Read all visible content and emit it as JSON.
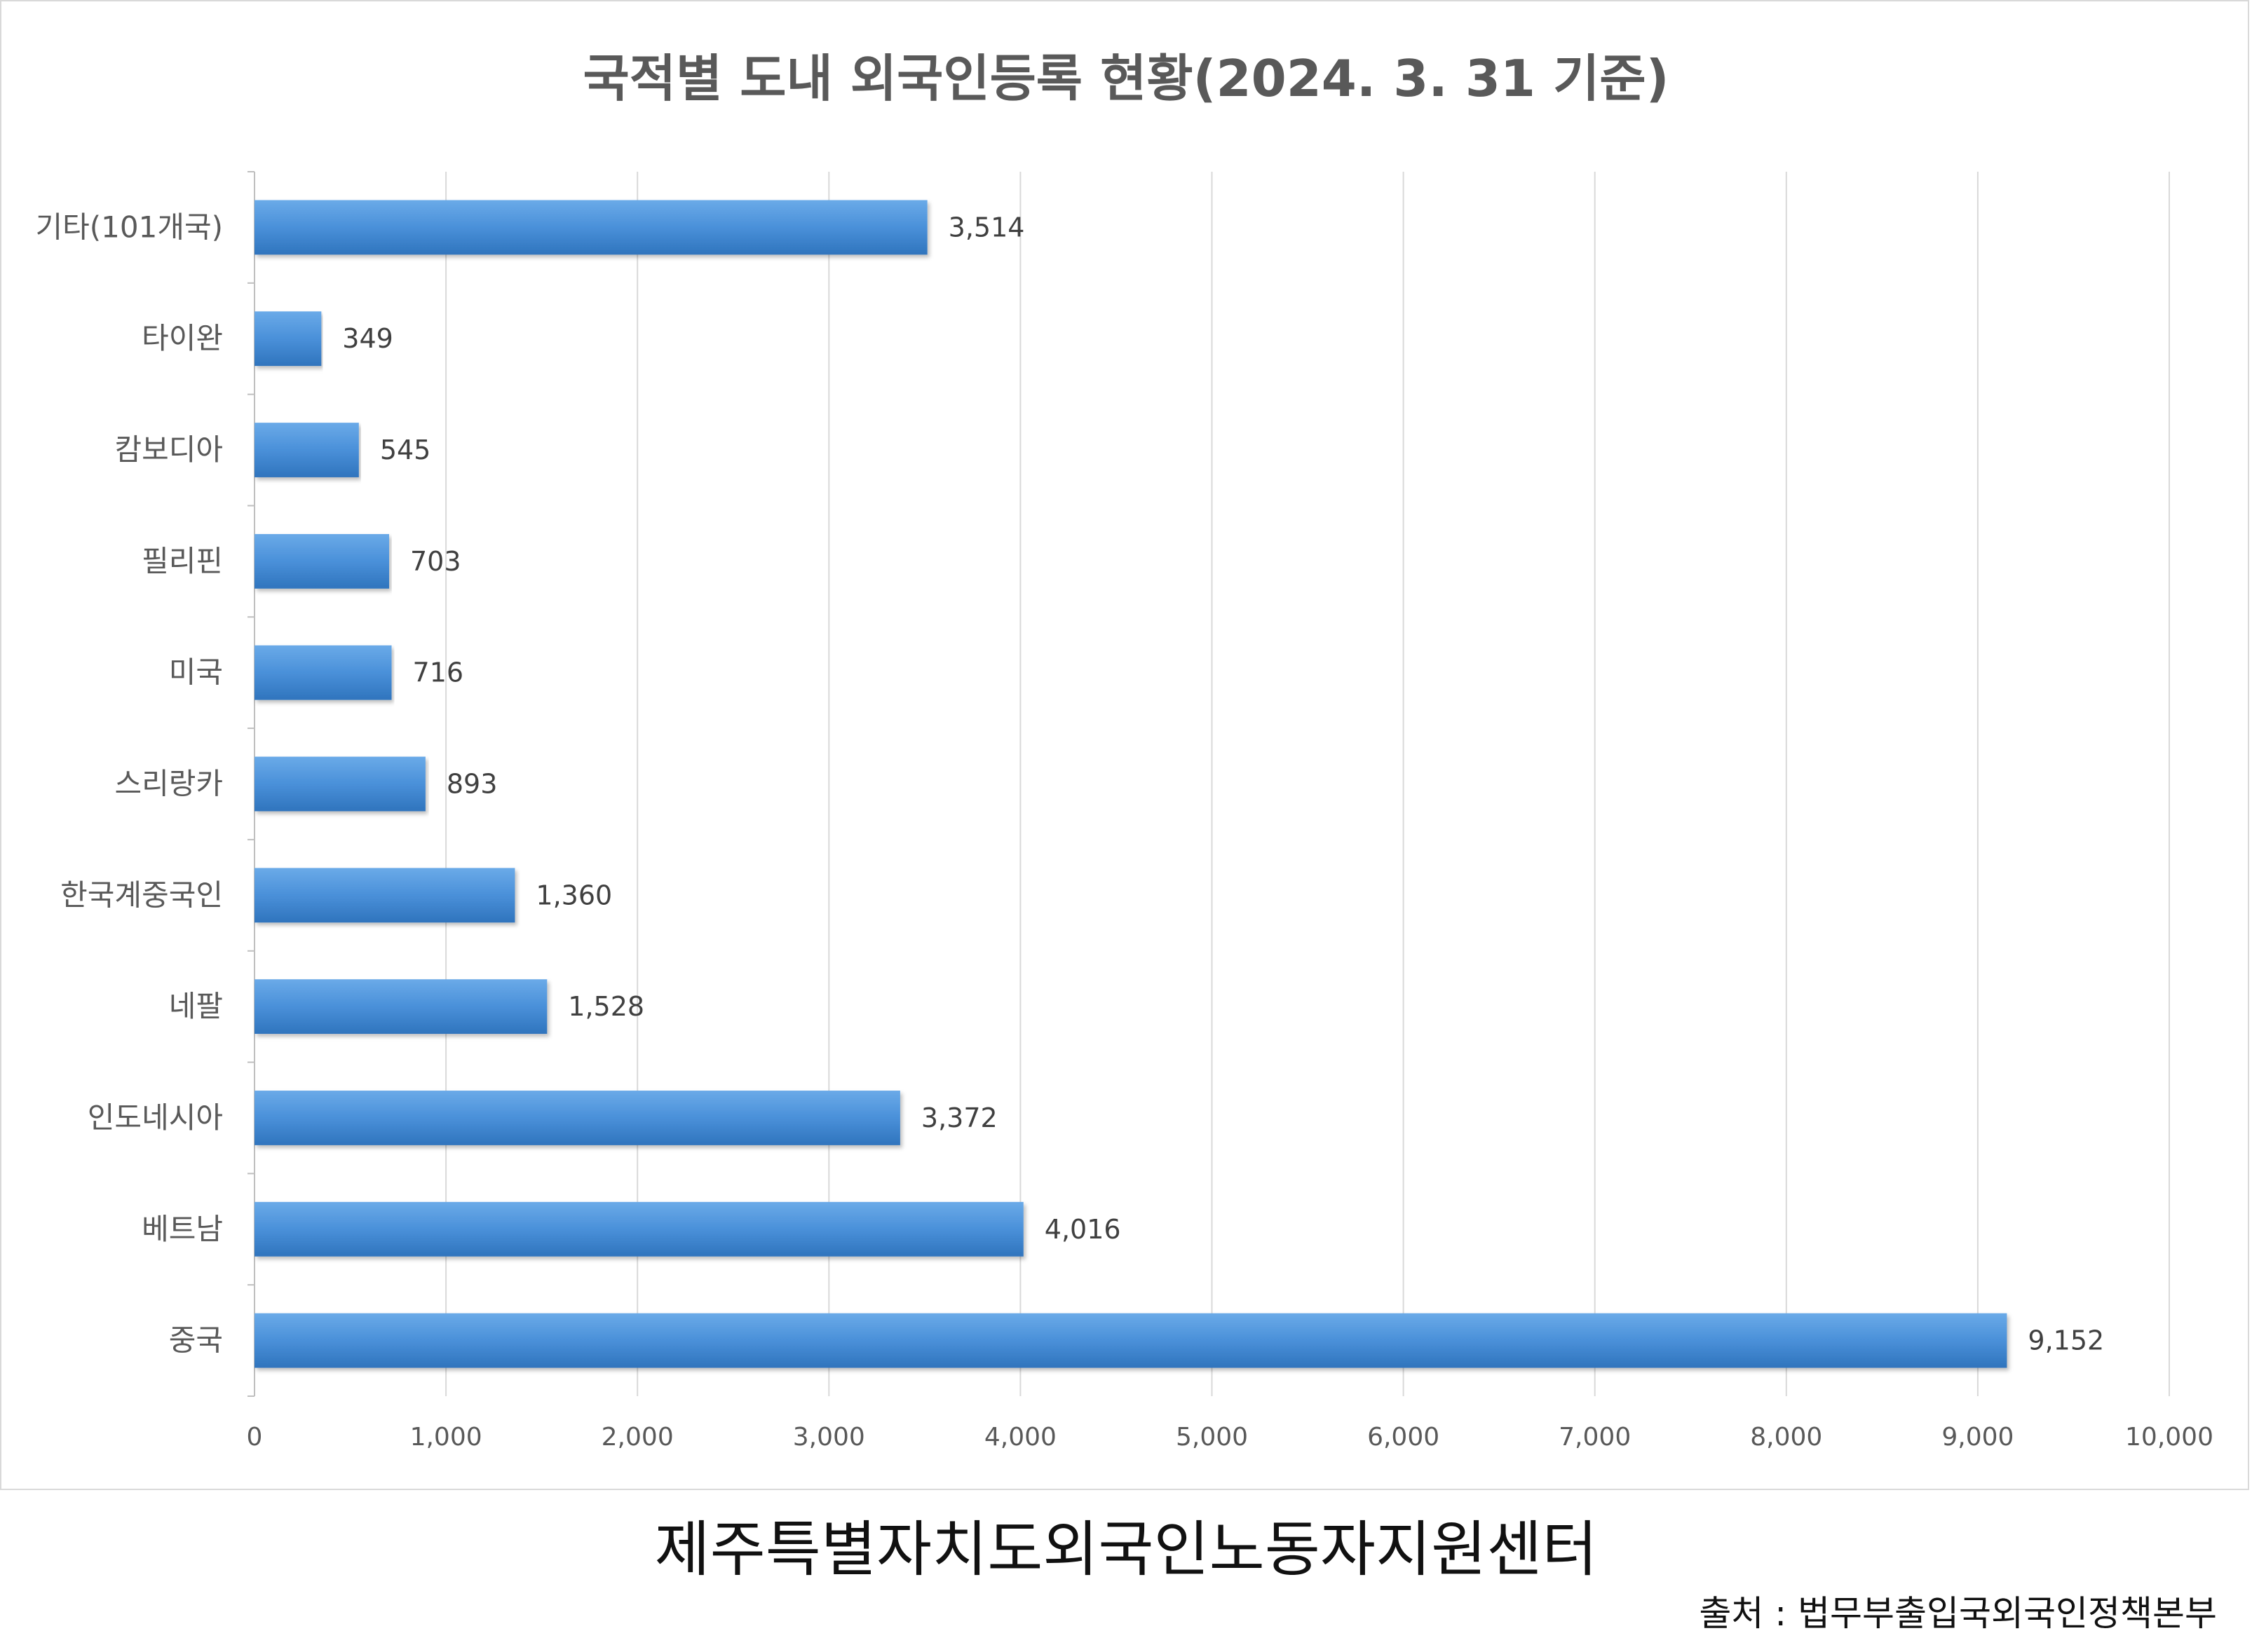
{
  "chart_data": {
    "type": "bar",
    "orientation": "horizontal",
    "title": "국적별 도내 외국인등록 현황(2024. 3. 31 기준)",
    "categories": [
      "기타(101개국)",
      "타이완",
      "캄보디아",
      "필리핀",
      "미국",
      "스리랑카",
      "한국계중국인",
      "네팔",
      "인도네시아",
      "베트남",
      "중국"
    ],
    "values": [
      3514,
      349,
      545,
      703,
      716,
      893,
      1360,
      1528,
      3372,
      4016,
      9152
    ],
    "data_labels": [
      "3,514",
      "349",
      "545",
      "703",
      "716",
      "893",
      "1,360",
      "1,528",
      "3,372",
      "4,016",
      "9,152"
    ],
    "xlim": [
      0,
      10000
    ],
    "xticks": [
      0,
      1000,
      2000,
      3000,
      4000,
      5000,
      6000,
      7000,
      8000,
      9000,
      10000
    ],
    "xtick_labels": [
      "0",
      "1,000",
      "2,000",
      "3,000",
      "4,000",
      "5,000",
      "6,000",
      "7,000",
      "8,000",
      "9,000",
      "10,000"
    ],
    "grid": "vertical",
    "legend": "none",
    "bar_color": "#4a90d9",
    "bar_color_light": "#6aaae8",
    "bar_color_dark": "#2f74bd"
  },
  "footer": {
    "org": "제주특별자치도외국인노동자지원센터",
    "source": "출처 : 법무부출입국외국인정책본부"
  }
}
